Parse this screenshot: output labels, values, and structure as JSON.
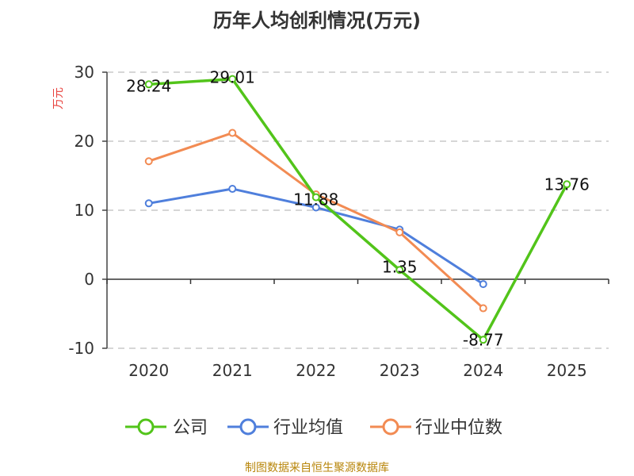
{
  "chart_data": {
    "type": "line",
    "title": "历年人均创利情况(万元)",
    "ylabel": "万元",
    "categories": [
      "2020",
      "2021",
      "2022",
      "2023",
      "2024",
      "2025"
    ],
    "ylim": [
      -10,
      30
    ],
    "yticks": [
      30,
      20,
      10,
      0,
      -10
    ],
    "grid": true,
    "legend_position": "bottom",
    "series": [
      {
        "name": "公司",
        "color": "#52c41a",
        "values": [
          28.24,
          29.01,
          11.88,
          1.35,
          -8.77,
          13.76
        ],
        "labels": [
          "28.24",
          "29.01",
          "11.88",
          "1.35",
          "-8.77",
          "13.76"
        ]
      },
      {
        "name": "行业均值",
        "color": "#4f7fdc",
        "values": [
          11.0,
          13.1,
          10.4,
          7.2,
          -0.7,
          null
        ]
      },
      {
        "name": "行业中位数",
        "color": "#f28b53",
        "values": [
          17.1,
          21.2,
          12.3,
          6.8,
          -4.2,
          null
        ]
      }
    ],
    "source": "制图数据来自恒生聚源数据库"
  }
}
